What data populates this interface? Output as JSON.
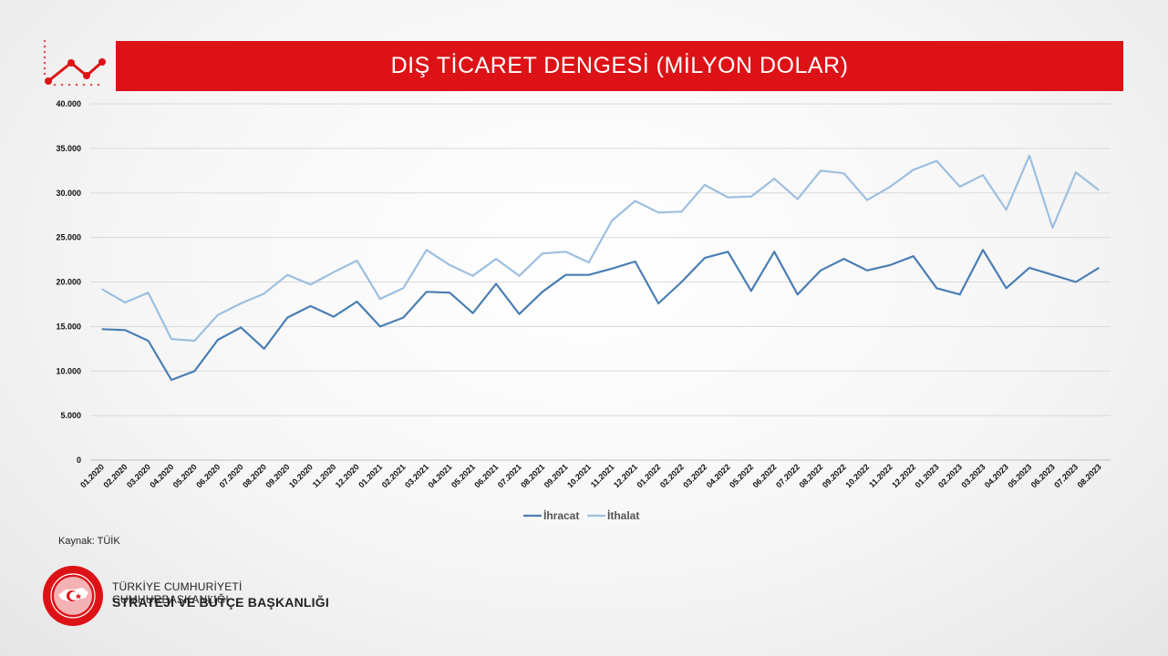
{
  "header": {
    "title": "DIŞ TİCARET DENGESİ (MİLYON DOLAR)"
  },
  "header_icon": "line-chart-icon",
  "footer": {
    "source": "Kaynak: TÜİK",
    "org_line1": "TÜRKİYE CUMHURİYETİ CUMHURBAŞKANLIĞI",
    "org_line2": "STRATEJİ VE BÜTÇE BAŞKANLIĞI",
    "seal_text": "T.C. CUMHURBAŞKANLIĞI STRATEJİ VE BÜTÇE BAŞKANLIĞI"
  },
  "colors": {
    "brand_red": "#dd1217",
    "ihracat": "#4a7eb3",
    "ithalat": "#9dbfe0",
    "grid": "#d9d9d9"
  },
  "chart_data": {
    "type": "line",
    "title": "DIŞ TİCARET DENGESİ (MİLYON DOLAR)",
    "xlabel": "",
    "ylabel": "",
    "ylim": [
      0,
      40000
    ],
    "yticks": [
      0,
      5000,
      10000,
      15000,
      20000,
      25000,
      30000,
      35000,
      40000
    ],
    "ytick_labels": [
      "0",
      "5.000",
      "10.000",
      "15.000",
      "20.000",
      "25.000",
      "30.000",
      "35.000",
      "40.000"
    ],
    "grid": true,
    "legend_position": "bottom",
    "categories": [
      "01.2020",
      "02.2020",
      "03.2020",
      "04.2020",
      "05.2020",
      "06.2020",
      "07.2020",
      "08.2020",
      "09.2020",
      "10.2020",
      "11.2020",
      "12.2020",
      "01.2021",
      "02.2021",
      "03.2021",
      "04.2021",
      "05.2021",
      "06.2021",
      "07.2021",
      "08.2021",
      "09.2021",
      "10.2021",
      "11.2021",
      "12.2021",
      "01.2022",
      "02.2022",
      "03.2022",
      "04.2022",
      "05.2022",
      "06.2022",
      "07.2022",
      "08.2022",
      "09.2022",
      "10.2022",
      "11.2022",
      "12.2022",
      "01.2023",
      "02.2023",
      "03.2023",
      "04.2023",
      "05.2023",
      "06.2023",
      "07.2023",
      "08.2023"
    ],
    "series": [
      {
        "name": "İhracat",
        "color": "#4a7eb3",
        "values": [
          14700,
          14600,
          13400,
          9000,
          10000,
          13500,
          14900,
          12500,
          16000,
          17300,
          16100,
          17800,
          15000,
          16000,
          18900,
          18800,
          16500,
          19800,
          16400,
          18900,
          20800,
          20800,
          21500,
          22300,
          17600,
          20000,
          22700,
          23400,
          19000,
          23400,
          18600,
          21300,
          22600,
          21300,
          21900,
          22900,
          19300,
          18600,
          23600,
          19300,
          21600,
          20800,
          20000,
          21600
        ]
      },
      {
        "name": "İthalat",
        "color": "#9dbfe0",
        "values": [
          19200,
          17700,
          18800,
          13600,
          13400,
          16300,
          17600,
          18700,
          20800,
          19700,
          21100,
          22400,
          18100,
          19300,
          23600,
          21900,
          20700,
          22600,
          20700,
          23200,
          23400,
          22200,
          26900,
          29100,
          27800,
          27900,
          30900,
          29500,
          29600,
          31600,
          29300,
          32500,
          32200,
          29200,
          30700,
          32600,
          33600,
          30700,
          32000,
          28100,
          34200,
          26100,
          32300,
          30300
        ]
      }
    ]
  }
}
